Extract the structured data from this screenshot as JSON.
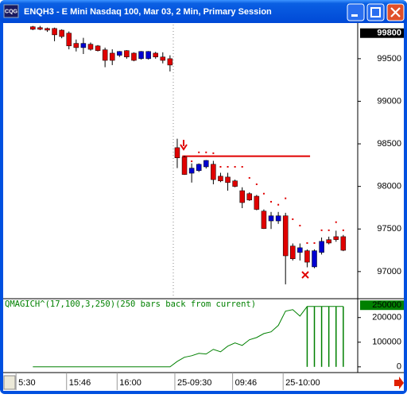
{
  "window": {
    "title": "ENQH3 - E Mini Nasdaq 100, Mar 03, 2 Min, Primary Session",
    "icon": "CQG"
  },
  "chart_data": [
    {
      "type": "candlestick",
      "open": [
        99875,
        99865,
        99855,
        99855,
        99835,
        99800,
        99680,
        99630,
        99670,
        99650,
        99605,
        99565,
        99540,
        99595,
        99565,
        99500,
        99500,
        99565,
        99520,
        99500,
        98455,
        98345,
        98155,
        98185,
        98230,
        98260,
        98120,
        98110,
        98065,
        97950,
        97915,
        97885,
        97710,
        97595,
        97595,
        97655,
        97300,
        97225,
        97245,
        97055,
        97225,
        97375,
        97410,
        97410
      ],
      "high": [
        99885,
        99885,
        99865,
        99865,
        99845,
        99820,
        99725,
        99745,
        99690,
        99660,
        99630,
        99610,
        99590,
        99600,
        99575,
        99590,
        99590,
        99580,
        99575,
        99540,
        98560,
        98360,
        98270,
        98270,
        98310,
        98300,
        98160,
        98160,
        98080,
        97990,
        97930,
        97900,
        97730,
        97700,
        97700,
        97690,
        97330,
        97330,
        97260,
        97260,
        97400,
        97410,
        97480,
        97430
      ],
      "low": [
        99835,
        99835,
        99815,
        99705,
        99740,
        99610,
        99585,
        99555,
        99595,
        99585,
        99400,
        99425,
        99520,
        99500,
        99470,
        99490,
        99490,
        99500,
        99445,
        99350,
        98215,
        98135,
        98045,
        98170,
        98210,
        98025,
        98050,
        97950,
        97990,
        97745,
        97830,
        97720,
        97500,
        97500,
        97560,
        96850,
        97130,
        97130,
        97050,
        97040,
        97200,
        97320,
        97350,
        97240
      ],
      "close": [
        99845,
        99845,
        99835,
        99780,
        99760,
        99650,
        99630,
        99680,
        99610,
        99595,
        99480,
        99480,
        99585,
        99520,
        99480,
        99585,
        99585,
        99520,
        99480,
        99425,
        98335,
        98140,
        98215,
        98260,
        98305,
        98080,
        98065,
        98045,
        98000,
        97810,
        97840,
        97730,
        97505,
        97655,
        97655,
        97185,
        97150,
        97280,
        97110,
        97245,
        97355,
        97335,
        97375,
        97250
      ],
      "stops": [
        null,
        null,
        null,
        null,
        null,
        null,
        null,
        null,
        null,
        null,
        null,
        null,
        null,
        null,
        null,
        null,
        null,
        null,
        null,
        null,
        null,
        null,
        98295,
        98400,
        98400,
        98390,
        98230,
        98230,
        98230,
        98230,
        98100,
        98025,
        97915,
        97820,
        97785,
        97860,
        97615,
        97540,
        97335,
        97335,
        97485,
        97485,
        97580,
        97485
      ],
      "up_color": "#0000d0",
      "down_color": "#e00000",
      "stop_color": "#e00000",
      "level": 98355,
      "level_color": "#e00000",
      "price_tag": 99800,
      "xlim": [
        -4,
        45
      ],
      "xticks": [
        {
          "value": -2,
          "label": "5:30"
        },
        {
          "value": 5,
          "label": "15:46"
        },
        {
          "value": 12,
          "label": "16:00"
        },
        {
          "value": 20,
          "label": "25-09:30"
        },
        {
          "value": 28,
          "label": "09:46"
        },
        {
          "value": 35,
          "label": "25-10:00"
        }
      ],
      "ylim": [
        96700,
        99900
      ],
      "yticks": [
        97000,
        97500,
        98000,
        98500,
        99000,
        99500
      ]
    },
    {
      "type": "line",
      "title": "QMAGICH^(17,100,3,250)(250 bars back from current)",
      "values": [
        0,
        0,
        0,
        0,
        0,
        0,
        0,
        0,
        0,
        0,
        0,
        0,
        0,
        0,
        0,
        0,
        0,
        0,
        0,
        0,
        22000,
        39000,
        45000,
        55000,
        52000,
        71000,
        61000,
        84000,
        97000,
        87000,
        110000,
        119000,
        135000,
        142000,
        168000,
        226000,
        232000,
        206000,
        245000,
        245000,
        245000,
        245000,
        245000,
        245000
      ],
      "bar_values": [
        null,
        null,
        null,
        null,
        null,
        null,
        null,
        null,
        null,
        null,
        null,
        null,
        null,
        null,
        null,
        null,
        null,
        null,
        null,
        null,
        null,
        null,
        null,
        null,
        null,
        null,
        null,
        null,
        null,
        null,
        null,
        null,
        null,
        null,
        null,
        null,
        null,
        null,
        245000,
        245000,
        245000,
        245000,
        245000,
        245000
      ],
      "color": "#008000",
      "tag": 250000,
      "xlim": [
        -4,
        45
      ],
      "ylim": [
        -20000,
        270000
      ],
      "yticks": [
        0,
        100000,
        200000
      ]
    }
  ]
}
